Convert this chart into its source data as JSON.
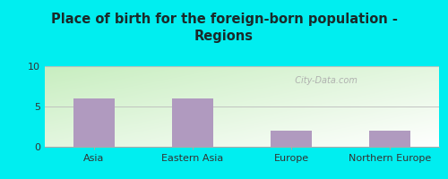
{
  "categories": [
    "Asia",
    "Eastern Asia",
    "Europe",
    "Northern Europe"
  ],
  "values": [
    6,
    6,
    2,
    2
  ],
  "bar_color": "#b09abf",
  "title_line1": "Place of birth for the foreign-born population -",
  "title_line2": "Regions",
  "ylim": [
    0,
    10
  ],
  "yticks": [
    0,
    5,
    10
  ],
  "background_outer": "#00eef0",
  "plot_bg_topleft": "#c8eec0",
  "plot_bg_white": "#f8fff8",
  "title_fontsize": 10.5,
  "tick_fontsize": 8,
  "watermark": "  City-Data.com"
}
